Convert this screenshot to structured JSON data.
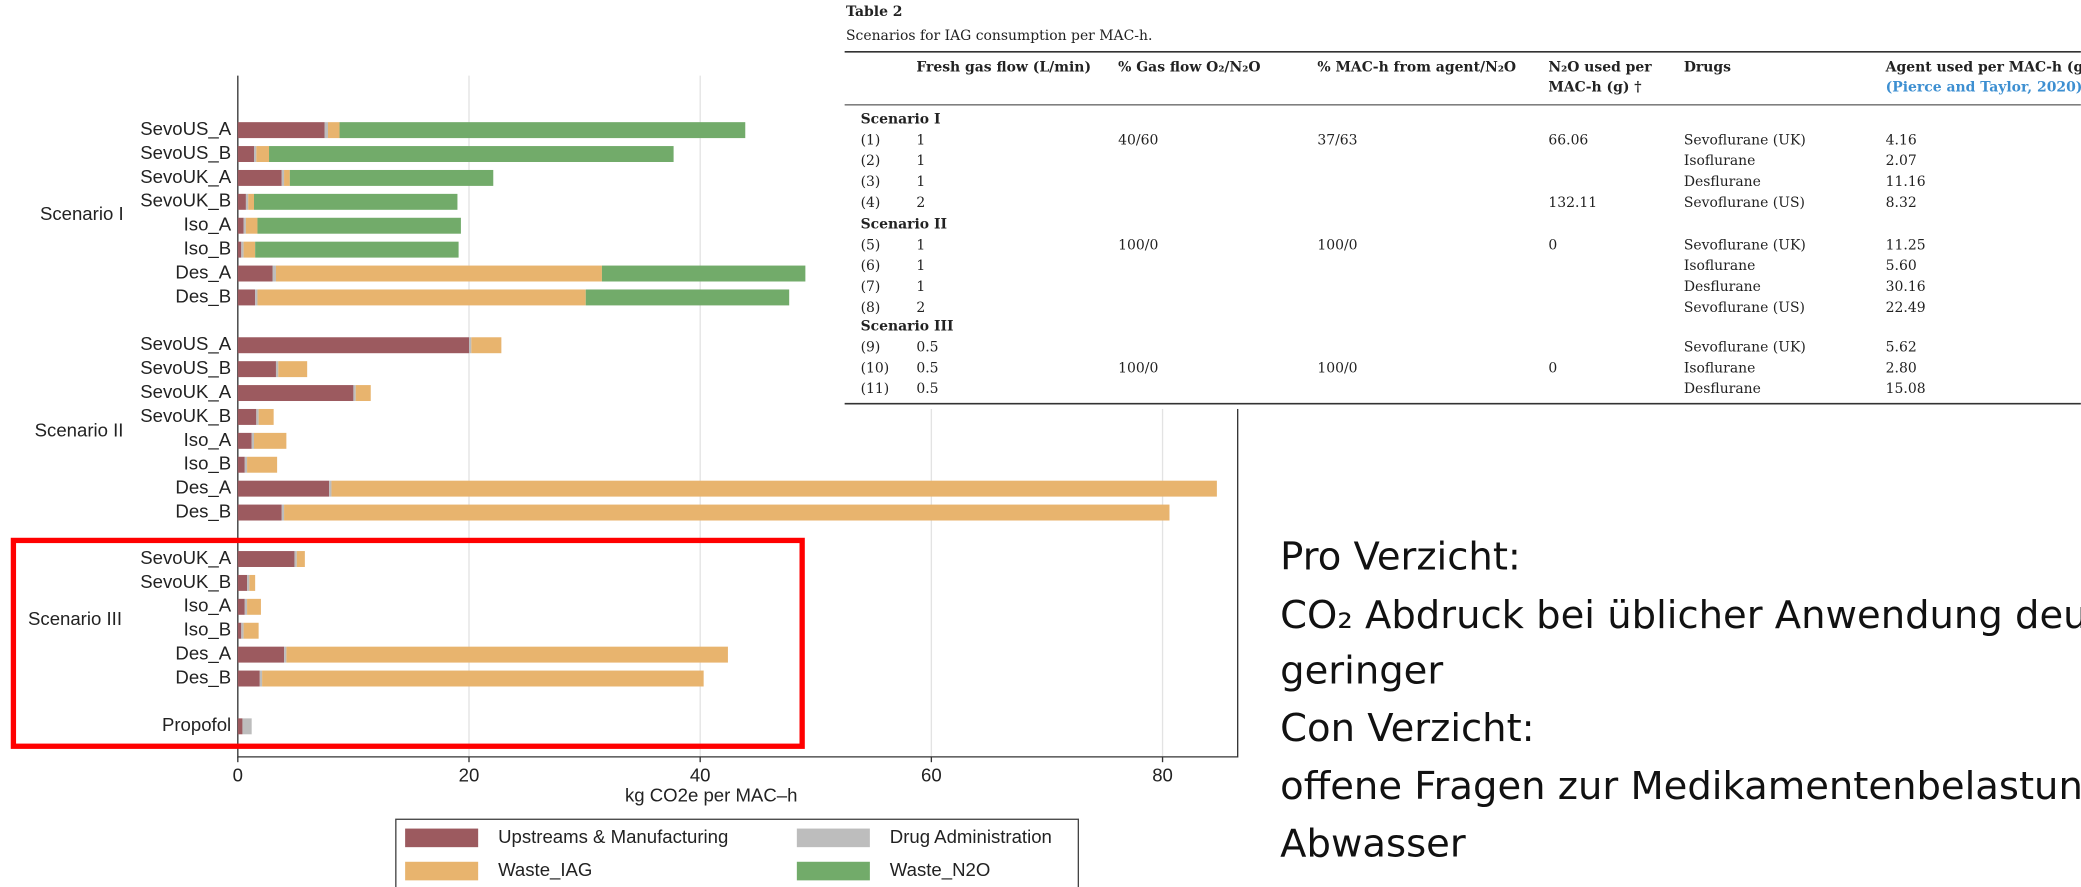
{
  "chart_data": {
    "type": "stacked-barh",
    "groups": [
      "Scenario I",
      "Scenario II",
      "Scenario III",
      null
    ],
    "categories": [
      [
        "SevoUS_A",
        "SevoUS_B",
        "SevoUK_A",
        "SevoUK_B",
        "Iso_A",
        "Iso_B",
        "Des_A",
        "Des_B"
      ],
      [
        "SevoUS_A",
        "SevoUS_B",
        "SevoUK_A",
        "SevoUK_B",
        "Iso_A",
        "Iso_B",
        "Des_A",
        "Des_B"
      ],
      [
        "SevoUK_A",
        "SevoUK_B",
        "Iso_A",
        "Iso_B",
        "Des_A",
        "Des_B"
      ],
      [
        "Propofol"
      ]
    ],
    "series": [
      {
        "name": "Upstreams & Manufacturing",
        "color": "#9c5a5f",
        "values": [
          [
            7.5,
            1.4,
            3.8,
            0.7,
            0.5,
            0.3,
            3.0,
            1.5
          ],
          [
            20.0,
            3.3,
            10.0,
            1.6,
            1.2,
            0.6,
            7.9,
            3.8
          ],
          [
            4.9,
            0.8,
            0.6,
            0.3,
            4.0,
            1.9
          ],
          [
            0.4
          ]
        ]
      },
      {
        "name": "Drug Administration",
        "color": "#bdbdbd",
        "values": [
          [
            0.3,
            0.2,
            0.2,
            0.2,
            0.2,
            0.2,
            0.3,
            0.2
          ],
          [
            0.2,
            0.2,
            0.2,
            0.2,
            0.2,
            0.2,
            0.2,
            0.2
          ],
          [
            0.2,
            0.2,
            0.2,
            0.2,
            0.2,
            0.2
          ],
          [
            0.8
          ]
        ]
      },
      {
        "name": "Waste_IAG",
        "color": "#e8b46e",
        "values": [
          [
            1.0,
            1.1,
            0.5,
            0.5,
            1.0,
            1.0,
            28.2,
            28.4
          ],
          [
            2.6,
            2.5,
            1.3,
            1.3,
            2.8,
            2.6,
            76.6,
            76.6
          ],
          [
            0.7,
            0.5,
            1.2,
            1.3,
            38.2,
            38.2
          ],
          [
            0
          ]
        ]
      },
      {
        "name": "Waste_N2O",
        "color": "#72ab6a",
        "values": [
          [
            35.1,
            35.0,
            17.6,
            17.6,
            17.6,
            17.6,
            17.6,
            17.6
          ],
          [
            0,
            0,
            0,
            0,
            0,
            0,
            0,
            0
          ],
          [
            0,
            0,
            0,
            0,
            0,
            0
          ],
          [
            0
          ]
        ]
      }
    ],
    "xlabel": "kg CO2e per MAC–h",
    "xlim": [
      0,
      86.5
    ],
    "xticks": [
      0,
      20,
      40,
      60,
      80
    ],
    "grid": true
  },
  "table": {
    "title": "Table 2",
    "caption": "Scenarios for IAG consumption per MAC-h.",
    "headers": [
      "Fresh gas flow (L/min)",
      "% Gas flow O₂/N₂O",
      "% MAC-h from agent/N₂O",
      [
        "N₂O used per",
        "MAC-h (g) †"
      ],
      "Drugs",
      [
        "Agent used per MAC-h (g)",
        "(Pierce and Taylor, 2020)"
      ]
    ],
    "sections": [
      {
        "title": "Scenario I",
        "rows": [
          [
            "(1)",
            "1",
            "40/60",
            "37/63",
            "66.06",
            "Sevoflurane (UK)",
            "4.16"
          ],
          [
            "(2)",
            "1",
            null,
            null,
            null,
            "Isoflurane",
            "2.07"
          ],
          [
            "(3)",
            "1",
            null,
            null,
            null,
            "Desflurane",
            "11.16"
          ],
          [
            "(4)",
            "2",
            null,
            null,
            "132.11",
            "Sevoflurane (US)",
            "8.32"
          ]
        ]
      },
      {
        "title": "Scenario II",
        "rows": [
          [
            "(5)",
            "1",
            "100/0",
            "100/0",
            "0",
            "Sevoflurane (UK)",
            "11.25"
          ],
          [
            "(6)",
            "1",
            null,
            null,
            null,
            "Isoflurane",
            "5.60"
          ],
          [
            "(7)",
            "1",
            null,
            null,
            null,
            "Desflurane",
            "30.16"
          ],
          [
            "(8)",
            "2",
            null,
            null,
            null,
            "Sevoflurane (US)",
            "22.49"
          ]
        ]
      },
      {
        "title": "Scenario III",
        "rows": [
          [
            "(9)",
            "0.5",
            null,
            null,
            null,
            "Sevoflurane (UK)",
            "5.62"
          ],
          [
            "(10)",
            "0.5",
            "100/0",
            "100/0",
            "0",
            "Isoflurane",
            "2.80"
          ],
          [
            "(11)",
            "0.5",
            null,
            null,
            null,
            "Desflurane",
            "15.08"
          ]
        ]
      }
    ]
  },
  "notes": [
    "Pro Verzicht:",
    "CO₂ Abdruck bei üblicher Anwendung deu",
    "geringer",
    "Con Verzicht:",
    "offene Fragen zur Medikamentenbelastun",
    "Abwasser"
  ]
}
